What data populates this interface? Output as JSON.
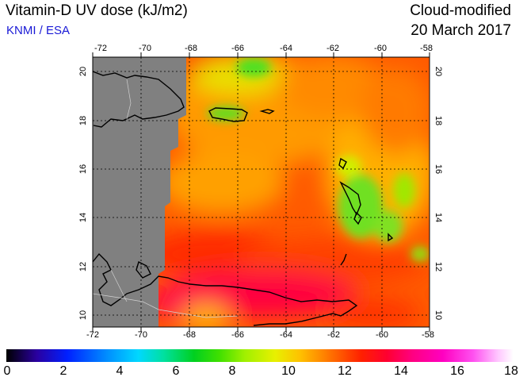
{
  "header": {
    "title": "Vitamin-D UV dose (kJ/m2)",
    "credit": "KNMI / ESA",
    "mode": "Cloud-modified",
    "date": "20 March 2017"
  },
  "map": {
    "lon_ticks": [
      "-72",
      "-70",
      "-68",
      "-66",
      "-64",
      "-62",
      "-60",
      "-58"
    ],
    "lat_ticks": [
      "20",
      "18",
      "16",
      "14",
      "12",
      "10"
    ],
    "lon_range": [
      -72,
      -58
    ],
    "lat_range": [
      9.5,
      20.5
    ],
    "no_data_color": "#808080",
    "grid": true
  },
  "colorbar": {
    "labels": [
      "0",
      "2",
      "4",
      "6",
      "8",
      "10",
      "12",
      "14",
      "16",
      "18"
    ],
    "range": [
      0,
      18
    ]
  }
}
